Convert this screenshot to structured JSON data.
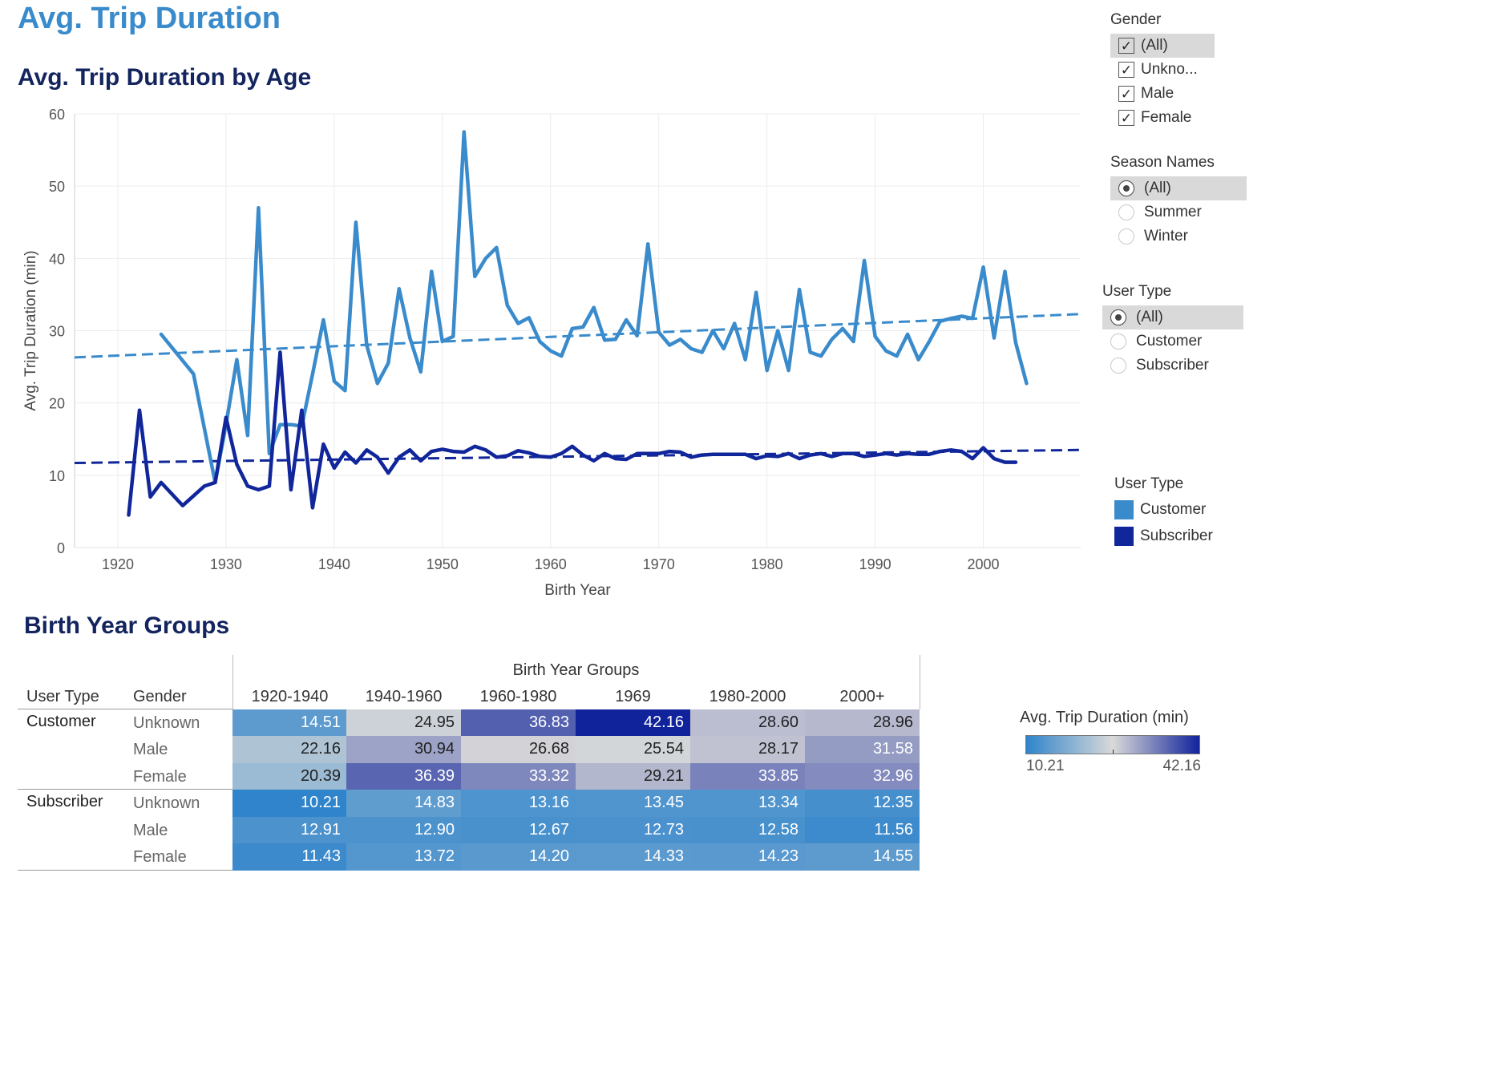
{
  "page_title": "Avg. Trip Duration",
  "chart_title": "Avg. Trip Duration by Age",
  "table_title": "Birth Year Groups",
  "filters": {
    "gender": {
      "title": "Gender",
      "options": [
        {
          "label": "(All)",
          "checked": true,
          "selected": true
        },
        {
          "label": "Unkno...",
          "checked": true,
          "selected": false
        },
        {
          "label": "Male",
          "checked": true,
          "selected": false
        },
        {
          "label": "Female",
          "checked": true,
          "selected": false
        }
      ]
    },
    "season": {
      "title": "Season Names",
      "options": [
        {
          "label": "(All)",
          "checked": true
        },
        {
          "label": "Summer",
          "checked": false
        },
        {
          "label": "Winter",
          "checked": false
        }
      ]
    },
    "user_type": {
      "title": "User Type",
      "options": [
        {
          "label": "(All)",
          "checked": true
        },
        {
          "label": "Customer",
          "checked": false
        },
        {
          "label": "Subscriber",
          "checked": false
        }
      ]
    }
  },
  "legend": {
    "title": "User Type",
    "items": [
      {
        "label": "Customer",
        "color": "#3a8bcc"
      },
      {
        "label": "Subscriber",
        "color": "#10269a"
      }
    ]
  },
  "color_legend": {
    "title": "Avg. Trip Duration (min)",
    "min_label": "10.21",
    "max_label": "42.16",
    "min": 10.21,
    "max": 42.16,
    "colors": [
      "#2f84cb",
      "#d9d9d9",
      "#10239b"
    ]
  },
  "chart_data": [
    {
      "type": "line",
      "title": "Avg. Trip Duration by Age",
      "xlabel": "Birth Year",
      "ylabel": "Avg. Trip Duration (min)",
      "xlim": [
        1916,
        2009
      ],
      "ylim": [
        0,
        60
      ],
      "xticks": [
        1920,
        1930,
        1940,
        1950,
        1960,
        1970,
        1980,
        1990,
        2000
      ],
      "yticks": [
        0,
        10,
        20,
        30,
        40,
        50,
        60
      ],
      "grid": true,
      "legend": "right",
      "series": [
        {
          "name": "Customer",
          "color": "#3a8bcc",
          "x": [
            1924,
            1927,
            1929,
            1930,
            1931,
            1932,
            1933,
            1934,
            1935,
            1936,
            1937,
            1938,
            1939,
            1940,
            1941,
            1942,
            1943,
            1944,
            1945,
            1946,
            1947,
            1948,
            1949,
            1950,
            1951,
            1952,
            1953,
            1954,
            1955,
            1956,
            1957,
            1958,
            1959,
            1960,
            1961,
            1962,
            1963,
            1964,
            1965,
            1966,
            1967,
            1968,
            1969,
            1970,
            1971,
            1972,
            1973,
            1974,
            1975,
            1976,
            1977,
            1978,
            1979,
            1980,
            1981,
            1982,
            1983,
            1984,
            1985,
            1986,
            1987,
            1988,
            1989,
            1990,
            1991,
            1992,
            1993,
            1994,
            1995,
            1996,
            1997,
            1998,
            1999,
            2000,
            2001,
            2002,
            2003,
            2004
          ],
          "y": [
            29.5,
            24,
            9,
            17,
            26,
            15.5,
            47,
            13,
            17,
            17,
            16.8,
            24,
            31.5,
            23,
            21.7,
            45,
            28,
            22.7,
            25.5,
            35.8,
            29,
            24.3,
            38.2,
            28.5,
            29.2,
            57.5,
            37.5,
            40,
            41.5,
            33.5,
            31,
            31.8,
            28.5,
            27.2,
            26.5,
            30.3,
            30.5,
            33.2,
            28.7,
            28.8,
            31.5,
            29.3,
            42,
            29.8,
            28,
            28.8,
            27.5,
            27,
            30,
            27.5,
            31,
            26,
            35.3,
            24.5,
            30,
            24.5,
            35.7,
            27,
            26.5,
            28.8,
            30.3,
            28.5,
            39.7,
            29.2,
            27.2,
            26.5,
            29.5,
            26,
            28.5,
            31.3,
            31.7,
            32,
            31.7,
            38.8,
            29,
            38.2,
            28.3,
            22.7
          ]
        },
        {
          "name": "Subscriber",
          "color": "#10269a",
          "x": [
            1921,
            1922,
            1923,
            1924,
            1926,
            1928,
            1929,
            1930,
            1931,
            1932,
            1933,
            1934,
            1935,
            1936,
            1937,
            1938,
            1939,
            1940,
            1941,
            1942,
            1943,
            1944,
            1945,
            1946,
            1947,
            1948,
            1949,
            1950,
            1951,
            1952,
            1953,
            1954,
            1955,
            1956,
            1957,
            1958,
            1959,
            1960,
            1961,
            1962,
            1963,
            1964,
            1965,
            1966,
            1967,
            1968,
            1969,
            1970,
            1971,
            1972,
            1973,
            1974,
            1975,
            1976,
            1977,
            1978,
            1979,
            1980,
            1981,
            1982,
            1983,
            1984,
            1985,
            1986,
            1987,
            1988,
            1989,
            1990,
            1991,
            1992,
            1993,
            1994,
            1995,
            1996,
            1997,
            1998,
            1999,
            2000,
            2001,
            2002,
            2003
          ],
          "y": [
            4.5,
            19,
            7,
            9,
            5.8,
            8.5,
            9,
            18,
            11.5,
            8.5,
            8,
            8.5,
            27,
            8,
            19,
            5.5,
            14.3,
            11,
            13.2,
            11.7,
            13.5,
            12.5,
            10.3,
            12.5,
            13.5,
            12,
            13.3,
            13.6,
            13.3,
            13.2,
            14,
            13.5,
            12.5,
            12.7,
            13.4,
            13.1,
            12.6,
            12.5,
            13,
            14,
            12.8,
            12,
            13,
            12.3,
            12.2,
            13,
            13,
            13,
            13.3,
            13.2,
            12.5,
            12.8,
            12.9,
            12.9,
            12.9,
            12.9,
            12.3,
            12.7,
            12.6,
            13,
            12.3,
            12.8,
            13,
            12.6,
            13,
            13,
            12.6,
            12.8,
            13,
            12.8,
            13,
            12.9,
            12.9,
            13.3,
            13.5,
            13.3,
            12.3,
            13.8,
            12.3,
            11.8,
            11.8
          ]
        }
      ],
      "trend_lines": [
        {
          "series": "Customer",
          "x": [
            1916,
            2009
          ],
          "y": [
            26.3,
            32.3
          ]
        },
        {
          "series": "Subscriber",
          "x": [
            1916,
            2009
          ],
          "y": [
            11.7,
            13.5
          ]
        }
      ]
    },
    {
      "type": "heatmap",
      "title": "Birth Year Groups",
      "column_header": "Birth Year Groups",
      "row_headers": [
        "User Type",
        "Gender"
      ],
      "columns": [
        "1920-1940",
        "1940-1960",
        "1960-1980",
        "1969",
        "1980-2000",
        "2000+"
      ],
      "rows": [
        {
          "user_type": "Customer",
          "gender": "Unknown",
          "values": [
            "14.51",
            "24.95",
            "36.83",
            "42.16",
            "28.60",
            "28.96"
          ]
        },
        {
          "user_type": "",
          "gender": "Male",
          "values": [
            "22.16",
            "30.94",
            "26.68",
            "25.54",
            "28.17",
            "31.58"
          ]
        },
        {
          "user_type": "",
          "gender": "Female",
          "values": [
            "20.39",
            "36.39",
            "33.32",
            "29.21",
            "33.85",
            "32.96"
          ]
        },
        {
          "user_type": "Subscriber",
          "gender": "Unknown",
          "values": [
            "10.21",
            "14.83",
            "13.16",
            "13.45",
            "13.34",
            "12.35"
          ]
        },
        {
          "user_type": "",
          "gender": "Male",
          "values": [
            "12.91",
            "12.90",
            "12.67",
            "12.73",
            "12.58",
            "11.56"
          ]
        },
        {
          "user_type": "",
          "gender": "Female",
          "values": [
            "11.43",
            "13.72",
            "14.20",
            "14.33",
            "14.23",
            "14.55"
          ]
        }
      ]
    }
  ]
}
